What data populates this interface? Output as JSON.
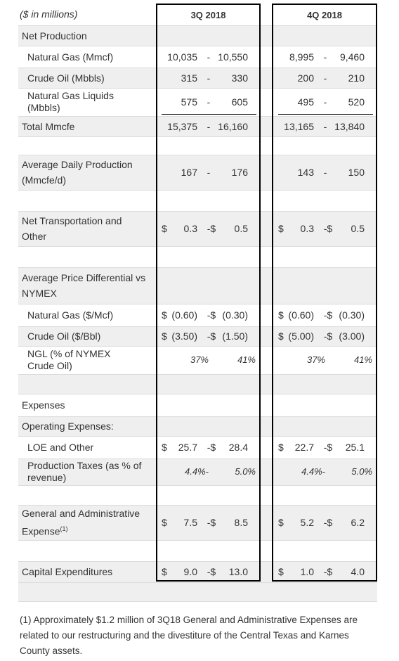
{
  "header": {
    "units": "($ in millions)",
    "col1": "3Q 2018",
    "col2": "4Q 2018"
  },
  "rows": [
    {
      "label": "Net Production"
    },
    {
      "label": "Natural Gas (Mmcf)",
      "q3": [
        "10,035",
        "-",
        "10,550"
      ],
      "q4": [
        "8,995",
        "-",
        "9,460"
      ]
    },
    {
      "label": "Crude Oil (Mbbls)",
      "q3": [
        "315",
        "-",
        "330"
      ],
      "q4": [
        "200",
        "-",
        "210"
      ]
    },
    {
      "label": "Natural Gas Liquids (Mbbls)",
      "q3": [
        "575",
        "-",
        "605"
      ],
      "q4": [
        "495",
        "-",
        "520"
      ]
    },
    {
      "label": "Total Mmcfe",
      "q3": [
        "15,375",
        "-",
        "16,160"
      ],
      "q4": [
        "13,165",
        "-",
        "13,840"
      ]
    },
    {
      "label": "Average Daily Production (Mmcfe/d)",
      "q3": [
        "167",
        "-",
        "176"
      ],
      "q4": [
        "143",
        "-",
        "150"
      ]
    },
    {
      "label": "Net Transportation and Other",
      "q3": [
        "$",
        "0.3",
        "-$",
        "0.5"
      ],
      "q4": [
        "$",
        "0.3",
        "-$",
        "0.5"
      ]
    },
    {
      "label": "Average Price Differential vs NYMEX"
    },
    {
      "label": "Natural Gas ($/Mcf)",
      "q3": [
        "$",
        "(0.60)",
        "-$",
        "(0.30)"
      ],
      "q4": [
        "$",
        "(0.60)",
        "-$",
        "(0.30)"
      ]
    },
    {
      "label": "Crude Oil ($/Bbl)",
      "q3": [
        "$",
        "(3.50)",
        "-$",
        "(1.50)"
      ],
      "q4": [
        "$",
        "(5.00)",
        "-$",
        "(3.00)"
      ]
    },
    {
      "label": "NGL (% of NYMEX Crude Oil)",
      "q3": [
        "37%",
        "41%"
      ],
      "q4": [
        "37%",
        "41%"
      ]
    },
    {
      "label": "Expenses"
    },
    {
      "label": "Operating Expenses:"
    },
    {
      "label": "LOE and Other",
      "q3": [
        "$",
        "25.7",
        "-$",
        "28.4"
      ],
      "q4": [
        "$",
        "22.7",
        "-$",
        "25.1"
      ]
    },
    {
      "label": "Production Taxes (as % of revenue)",
      "q3": [
        "4.4%-",
        "5.0%"
      ],
      "q4": [
        "4.4%-",
        "5.0%"
      ]
    },
    {
      "label": "General and Administrative Expense",
      "note": "(1)",
      "q3": [
        "$",
        "7.5",
        "-$",
        "8.5"
      ],
      "q4": [
        "$",
        "5.2",
        "-$",
        "6.2"
      ]
    },
    {
      "label": "Capital Expenditures",
      "q3": [
        "$",
        "9.0",
        "-$",
        "13.0"
      ],
      "q4": [
        "$",
        "1.0",
        "-$",
        "4.0"
      ]
    }
  ],
  "footnote": "(1) Approximately $1.2 million of 3Q18 General and Administrative Expenses are related to our restructuring and the divestiture of the Central Texas and Karnes County assets."
}
